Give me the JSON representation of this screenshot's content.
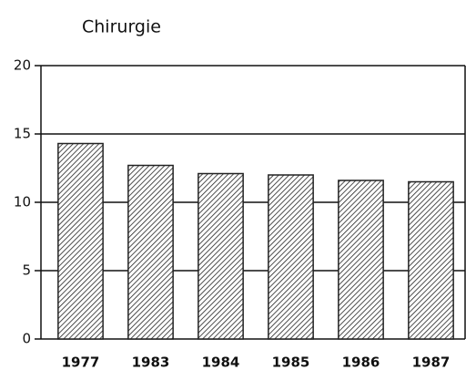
{
  "chart_data": {
    "type": "bar",
    "title": "Chirurgie",
    "categories": [
      "1977",
      "1983",
      "1984",
      "1985",
      "1986",
      "1987"
    ],
    "values": [
      14.3,
      12.7,
      12.1,
      12.0,
      11.6,
      11.5
    ],
    "color": "#222222",
    "ylim": [
      0,
      20
    ],
    "yticks": [
      0,
      5,
      10,
      15,
      20
    ],
    "grid": true
  }
}
